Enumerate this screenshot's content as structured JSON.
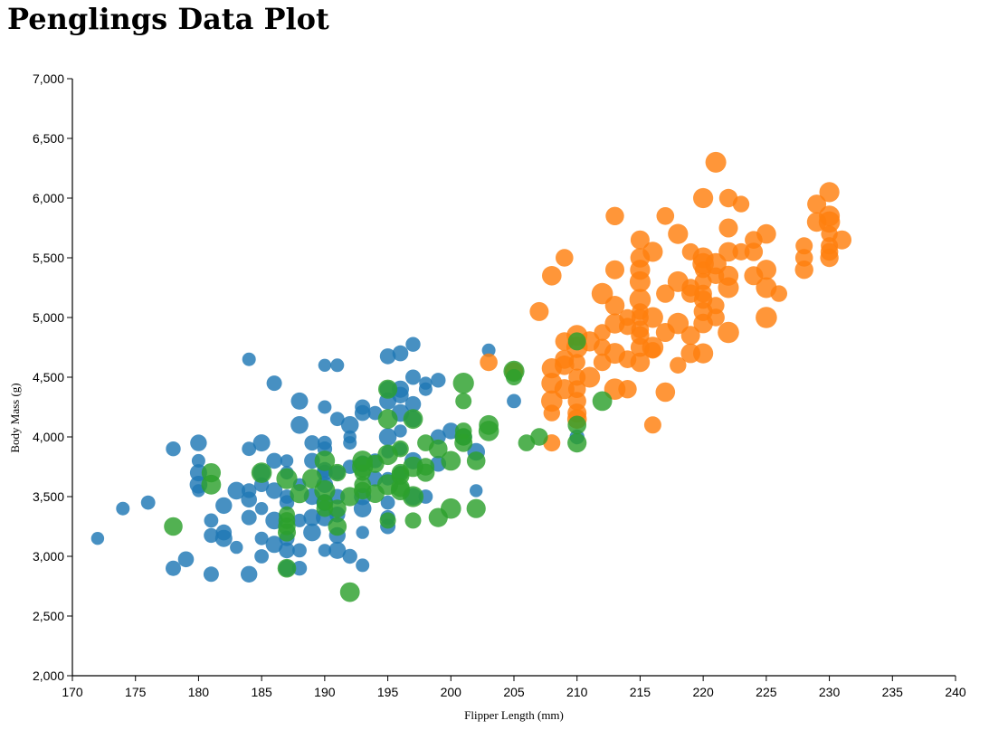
{
  "page": {
    "title": "Penglings Data Plot"
  },
  "chart_data": {
    "type": "scatter",
    "title": "Penglings Data Plot",
    "xlabel": "Flipper Length (mm)",
    "ylabel": "Body Mass (g)",
    "xlim": [
      170,
      240
    ],
    "ylim": [
      2000,
      7000
    ],
    "x_ticks": [
      170,
      175,
      180,
      185,
      190,
      195,
      200,
      205,
      210,
      215,
      220,
      225,
      230,
      235,
      240
    ],
    "y_ticks": [
      2000,
      2500,
      3000,
      3500,
      4000,
      4500,
      5000,
      5500,
      6000,
      6500,
      7000
    ],
    "y_tick_labels": [
      "2,000",
      "2,500",
      "3,000",
      "3,500",
      "4,000",
      "4,500",
      "5,000",
      "5,500",
      "6,000",
      "6,500",
      "7,000"
    ],
    "grid": false,
    "legend": "none",
    "point_size_encoding": "marker size varies between points",
    "series": [
      {
        "color": "#1f77b4",
        "points": [
          [
            172,
            3150
          ],
          [
            174,
            3400
          ],
          [
            176,
            3450
          ],
          [
            178,
            3900
          ],
          [
            178,
            2900
          ],
          [
            179,
            2975
          ],
          [
            180,
            3950
          ],
          [
            180,
            3700
          ],
          [
            180,
            3600
          ],
          [
            180,
            3550
          ],
          [
            180,
            3800
          ],
          [
            181,
            3300
          ],
          [
            181,
            3175
          ],
          [
            181,
            2850
          ],
          [
            182,
            3200
          ],
          [
            182,
            3425
          ],
          [
            182,
            3150
          ],
          [
            183,
            3550
          ],
          [
            183,
            3075
          ],
          [
            184,
            4650
          ],
          [
            184,
            3900
          ],
          [
            184,
            3550
          ],
          [
            184,
            3325
          ],
          [
            184,
            3475
          ],
          [
            184,
            2850
          ],
          [
            185,
            3950
          ],
          [
            185,
            3700
          ],
          [
            185,
            3400
          ],
          [
            185,
            3150
          ],
          [
            185,
            3000
          ],
          [
            185,
            3600
          ],
          [
            186,
            4450
          ],
          [
            186,
            3800
          ],
          [
            186,
            3550
          ],
          [
            186,
            3100
          ],
          [
            186,
            3300
          ],
          [
            187,
            3800
          ],
          [
            187,
            3700
          ],
          [
            187,
            3500
          ],
          [
            187,
            3450
          ],
          [
            187,
            3150
          ],
          [
            187,
            3050
          ],
          [
            187,
            2900
          ],
          [
            188,
            4300
          ],
          [
            188,
            4100
          ],
          [
            188,
            3600
          ],
          [
            188,
            3300
          ],
          [
            188,
            3050
          ],
          [
            188,
            2900
          ],
          [
            189,
            3950
          ],
          [
            189,
            3800
          ],
          [
            189,
            3500
          ],
          [
            189,
            3325
          ],
          [
            189,
            3200
          ],
          [
            190,
            4600
          ],
          [
            190,
            4250
          ],
          [
            190,
            3950
          ],
          [
            190,
            3900
          ],
          [
            190,
            3725
          ],
          [
            190,
            3700
          ],
          [
            190,
            3600
          ],
          [
            190,
            3450
          ],
          [
            190,
            3325
          ],
          [
            190,
            3050
          ],
          [
            191,
            4600
          ],
          [
            191,
            4150
          ],
          [
            191,
            3700
          ],
          [
            191,
            3500
          ],
          [
            191,
            3350
          ],
          [
            191,
            3175
          ],
          [
            191,
            3050
          ],
          [
            192,
            4100
          ],
          [
            192,
            4000
          ],
          [
            192,
            3950
          ],
          [
            192,
            3750
          ],
          [
            192,
            3000
          ],
          [
            193,
            4250
          ],
          [
            193,
            4200
          ],
          [
            193,
            3775
          ],
          [
            193,
            3500
          ],
          [
            193,
            3400
          ],
          [
            193,
            3200
          ],
          [
            193,
            2925
          ],
          [
            194,
            4200
          ],
          [
            194,
            3800
          ],
          [
            194,
            3650
          ],
          [
            195,
            4675
          ],
          [
            195,
            4400
          ],
          [
            195,
            4300
          ],
          [
            195,
            4000
          ],
          [
            195,
            3875
          ],
          [
            195,
            3650
          ],
          [
            195,
            3450
          ],
          [
            195,
            3325
          ],
          [
            195,
            3250
          ],
          [
            196,
            4700
          ],
          [
            196,
            4350
          ],
          [
            196,
            4400
          ],
          [
            196,
            4200
          ],
          [
            196,
            4050
          ],
          [
            196,
            3900
          ],
          [
            196,
            3700
          ],
          [
            197,
            4775
          ],
          [
            197,
            4500
          ],
          [
            197,
            4275
          ],
          [
            197,
            4150
          ],
          [
            197,
            3800
          ],
          [
            197,
            3500
          ],
          [
            198,
            4450
          ],
          [
            198,
            4400
          ],
          [
            198,
            3500
          ],
          [
            199,
            4475
          ],
          [
            199,
            4000
          ],
          [
            199,
            3775
          ],
          [
            200,
            4050
          ],
          [
            201,
            4000
          ],
          [
            202,
            3875
          ],
          [
            202,
            3550
          ],
          [
            203,
            4725
          ],
          [
            205,
            4300
          ],
          [
            210,
            4000
          ]
        ]
      },
      {
        "color": "#ff7f0e",
        "points": [
          [
            203,
            4625
          ],
          [
            205,
            4550
          ],
          [
            207,
            5050
          ],
          [
            208,
            5350
          ],
          [
            208,
            4575
          ],
          [
            208,
            4450
          ],
          [
            208,
            4300
          ],
          [
            208,
            4200
          ],
          [
            208,
            3950
          ],
          [
            209,
            5500
          ],
          [
            209,
            4800
          ],
          [
            209,
            4650
          ],
          [
            209,
            4600
          ],
          [
            209,
            4400
          ],
          [
            210,
            4850
          ],
          [
            210,
            4750
          ],
          [
            210,
            4625
          ],
          [
            210,
            4500
          ],
          [
            210,
            4400
          ],
          [
            210,
            4300
          ],
          [
            210,
            4200
          ],
          [
            210,
            4150
          ],
          [
            211,
            4800
          ],
          [
            211,
            4500
          ],
          [
            212,
            5200
          ],
          [
            212,
            4875
          ],
          [
            212,
            4750
          ],
          [
            212,
            4625
          ],
          [
            213,
            5850
          ],
          [
            213,
            5400
          ],
          [
            213,
            5100
          ],
          [
            213,
            4950
          ],
          [
            213,
            4700
          ],
          [
            213,
            4400
          ],
          [
            214,
            5000
          ],
          [
            214,
            4925
          ],
          [
            214,
            4650
          ],
          [
            214,
            4400
          ],
          [
            215,
            5650
          ],
          [
            215,
            5500
          ],
          [
            215,
            5400
          ],
          [
            215,
            5300
          ],
          [
            215,
            5150
          ],
          [
            215,
            5050
          ],
          [
            215,
            5000
          ],
          [
            215,
            4900
          ],
          [
            215,
            4850
          ],
          [
            215,
            4750
          ],
          [
            215,
            4625
          ],
          [
            216,
            5550
          ],
          [
            216,
            5000
          ],
          [
            216,
            4750
          ],
          [
            216,
            4725
          ],
          [
            216,
            4100
          ],
          [
            217,
            5850
          ],
          [
            217,
            5200
          ],
          [
            217,
            4875
          ],
          [
            217,
            4375
          ],
          [
            218,
            5700
          ],
          [
            218,
            5300
          ],
          [
            218,
            4950
          ],
          [
            218,
            4600
          ],
          [
            219,
            5550
          ],
          [
            219,
            5250
          ],
          [
            219,
            5200
          ],
          [
            219,
            4850
          ],
          [
            219,
            4700
          ],
          [
            220,
            6000
          ],
          [
            220,
            5500
          ],
          [
            220,
            5450
          ],
          [
            220,
            5400
          ],
          [
            220,
            5300
          ],
          [
            220,
            5200
          ],
          [
            220,
            5150
          ],
          [
            220,
            5050
          ],
          [
            220,
            4950
          ],
          [
            220,
            4700
          ],
          [
            221,
            6300
          ],
          [
            221,
            5450
          ],
          [
            221,
            5350
          ],
          [
            221,
            5100
          ],
          [
            221,
            5000
          ],
          [
            222,
            6000
          ],
          [
            222,
            5750
          ],
          [
            222,
            5550
          ],
          [
            222,
            5350
          ],
          [
            222,
            5250
          ],
          [
            222,
            4875
          ],
          [
            223,
            5950
          ],
          [
            223,
            5550
          ],
          [
            224,
            5650
          ],
          [
            224,
            5550
          ],
          [
            224,
            5350
          ],
          [
            225,
            5700
          ],
          [
            225,
            5400
          ],
          [
            225,
            5250
          ],
          [
            225,
            5000
          ],
          [
            226,
            5200
          ],
          [
            228,
            5600
          ],
          [
            228,
            5500
          ],
          [
            228,
            5400
          ],
          [
            229,
            5950
          ],
          [
            229,
            5800
          ],
          [
            230,
            6050
          ],
          [
            230,
            5850
          ],
          [
            230,
            5800
          ],
          [
            230,
            5700
          ],
          [
            230,
            5600
          ],
          [
            230,
            5550
          ],
          [
            230,
            5500
          ],
          [
            231,
            5650
          ]
        ]
      },
      {
        "color": "#2ca02c",
        "points": [
          [
            178,
            3250
          ],
          [
            181,
            3700
          ],
          [
            181,
            3600
          ],
          [
            185,
            3700
          ],
          [
            187,
            3650
          ],
          [
            187,
            3350
          ],
          [
            187,
            3300
          ],
          [
            187,
            3250
          ],
          [
            187,
            3200
          ],
          [
            187,
            2900
          ],
          [
            188,
            3525
          ],
          [
            189,
            3650
          ],
          [
            190,
            3800
          ],
          [
            190,
            3550
          ],
          [
            190,
            3450
          ],
          [
            190,
            3400
          ],
          [
            191,
            3700
          ],
          [
            191,
            3400
          ],
          [
            191,
            3250
          ],
          [
            192,
            3500
          ],
          [
            192,
            2700
          ],
          [
            193,
            3800
          ],
          [
            193,
            3750
          ],
          [
            193,
            3700
          ],
          [
            193,
            3600
          ],
          [
            193,
            3550
          ],
          [
            194,
            3775
          ],
          [
            194,
            3525
          ],
          [
            195,
            4400
          ],
          [
            195,
            4150
          ],
          [
            195,
            3850
          ],
          [
            195,
            3600
          ],
          [
            195,
            3300
          ],
          [
            196,
            3900
          ],
          [
            196,
            3700
          ],
          [
            196,
            3675
          ],
          [
            196,
            3575
          ],
          [
            196,
            3550
          ],
          [
            197,
            4150
          ],
          [
            197,
            3750
          ],
          [
            197,
            3500
          ],
          [
            197,
            3300
          ],
          [
            198,
            3950
          ],
          [
            198,
            3750
          ],
          [
            198,
            3700
          ],
          [
            199,
            3900
          ],
          [
            199,
            3325
          ],
          [
            200,
            3800
          ],
          [
            200,
            3400
          ],
          [
            201,
            4450
          ],
          [
            201,
            4300
          ],
          [
            201,
            4050
          ],
          [
            201,
            4000
          ],
          [
            201,
            3950
          ],
          [
            202,
            3800
          ],
          [
            202,
            3400
          ],
          [
            203,
            4100
          ],
          [
            203,
            4050
          ],
          [
            205,
            4550
          ],
          [
            205,
            4500
          ],
          [
            206,
            3950
          ],
          [
            207,
            4000
          ],
          [
            210,
            4800
          ],
          [
            210,
            4100
          ],
          [
            210,
            3950
          ],
          [
            212,
            4300
          ]
        ]
      }
    ]
  }
}
